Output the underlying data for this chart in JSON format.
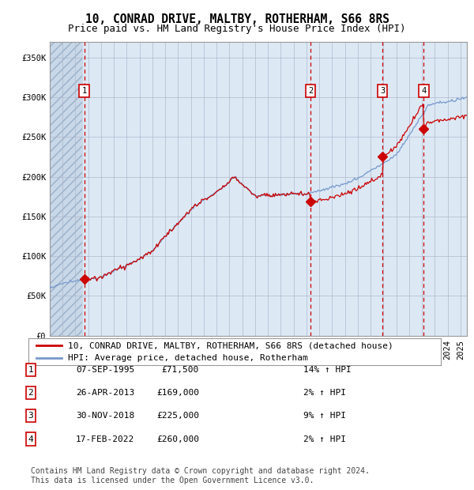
{
  "title": "10, CONRAD DRIVE, MALTBY, ROTHERHAM, S66 8RS",
  "subtitle": "Price paid vs. HM Land Registry's House Price Index (HPI)",
  "ylabel_ticks": [
    "£0",
    "£50K",
    "£100K",
    "£150K",
    "£200K",
    "£250K",
    "£300K",
    "£350K"
  ],
  "ytick_values": [
    0,
    50000,
    100000,
    150000,
    200000,
    250000,
    300000,
    350000
  ],
  "ylim": [
    0,
    370000
  ],
  "xlim_start": 1993.0,
  "xlim_end": 2025.5,
  "sale_dates": [
    1995.69,
    2013.32,
    2018.92,
    2022.13
  ],
  "sale_prices": [
    71500,
    169000,
    225000,
    260000
  ],
  "sale_labels": [
    "1",
    "2",
    "3",
    "4"
  ],
  "sale_date_strings": [
    "07-SEP-1995",
    "26-APR-2013",
    "30-NOV-2018",
    "17-FEB-2022"
  ],
  "sale_price_strings": [
    "£71,500",
    "£169,000",
    "£225,000",
    "£260,000"
  ],
  "sale_hpi_strings": [
    "14% ↑ HPI",
    "2% ↑ HPI",
    "9% ↑ HPI",
    "2% ↑ HPI"
  ],
  "hatch_end_year": 1995.5,
  "background_main": "#dce9f5",
  "background_hatch": "#c8d8e8",
  "hatch_edgecolor": "#9ab0c8",
  "grid_color": "#b0b8cc",
  "red_line_color": "#cc0000",
  "blue_line_color": "#7799cc",
  "sale_dot_color": "#cc0000",
  "vline_color": "#cc0000",
  "legend_label_red": "10, CONRAD DRIVE, MALTBY, ROTHERHAM, S66 8RS (detached house)",
  "legend_label_blue": "HPI: Average price, detached house, Rotherham",
  "footer_text": "Contains HM Land Registry data © Crown copyright and database right 2024.\nThis data is licensed under the Open Government Licence v3.0.",
  "title_fontsize": 10.5,
  "subtitle_fontsize": 9,
  "tick_fontsize": 7.5,
  "legend_fontsize": 8,
  "table_fontsize": 8,
  "footer_fontsize": 7
}
